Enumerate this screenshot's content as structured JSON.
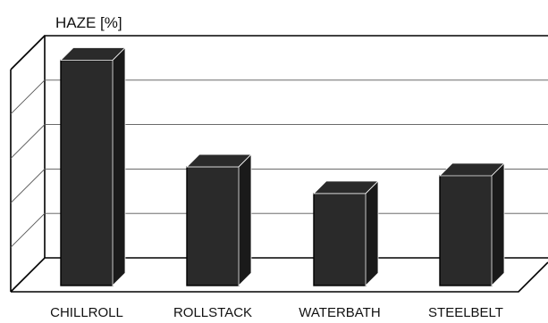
{
  "chart_data": {
    "type": "bar",
    "title": "",
    "ylabel": "HAZE [%]",
    "xlabel": "",
    "categories": [
      "CHILLROLL",
      "ROLLSTACK",
      "WATERBATH",
      "STEELBELT"
    ],
    "values": [
      4.6,
      2.2,
      1.6,
      2.0
    ],
    "ylim": [
      0,
      5
    ],
    "grid": true,
    "colors": {
      "bar": "#2a2a2a",
      "outline": "#000000",
      "grid": "#555555"
    }
  }
}
